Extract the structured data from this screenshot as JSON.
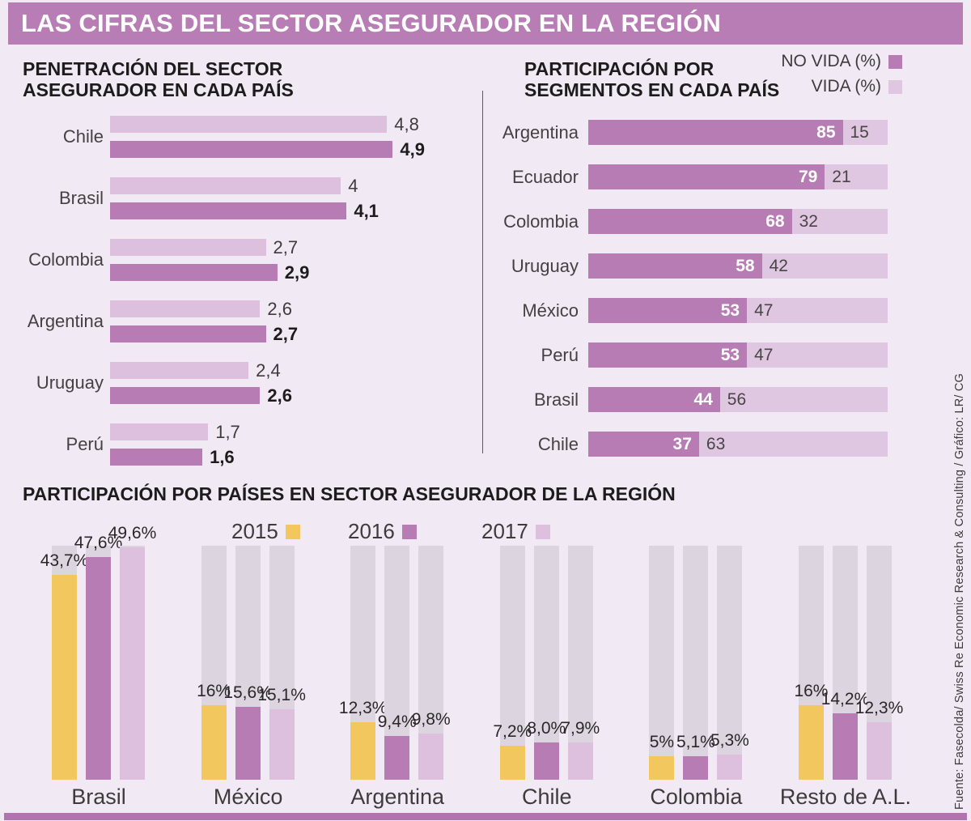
{
  "page": {
    "title": "LAS CIFRAS DEL SECTOR ASEGURADOR EN LA REGIÓN",
    "source_note": "Fuente: Fasecolda/ Swiss Re Economic Research & Consulting / Gráfico: LR/ CG"
  },
  "colors": {
    "background": "#f1eaf4",
    "header_bar": "#b77db4",
    "bottom_bar": "#b273ae",
    "bar_dark": "#b77cb4",
    "bar_light": "#dcc0de",
    "vida_light": "#dfc7e1",
    "track": "#dcd5e0",
    "yellow": "#f2c75e",
    "text_dark": "#231f20",
    "text_gray": "#464043",
    "white": "#ffffff"
  },
  "chart_data": [
    {
      "name": "penetracion_sector",
      "type": "bar",
      "orientation": "horizontal",
      "title": "PENETRACIÓN DEL SECTOR ASEGURADOR EN CADA PAÍS",
      "categories": [
        "Chile",
        "Brasil",
        "Colombia",
        "Argentina",
        "Uruguay",
        "Perú"
      ],
      "series": [
        {
          "name": "claro",
          "values": [
            4.8,
            4,
            2.7,
            2.6,
            2.4,
            1.7
          ],
          "labels": [
            "4,8",
            "4",
            "2,7",
            "2,6",
            "2,4",
            "1,7"
          ]
        },
        {
          "name": "oscuro",
          "values": [
            4.9,
            4.1,
            2.9,
            2.7,
            2.6,
            1.6
          ],
          "labels": [
            "4,9",
            "4,1",
            "2,9",
            "2,7",
            "2,6",
            "1,6"
          ]
        }
      ],
      "xmax": 5,
      "grid": false
    },
    {
      "name": "participacion_segmentos",
      "type": "bar",
      "subtype": "stacked",
      "orientation": "horizontal",
      "title": "PARTICIPACIÓN POR SEGMENTOS EN CADA PAÍS",
      "categories": [
        "Argentina",
        "Ecuador",
        "Colombia",
        "Uruguay",
        "México",
        "Perú",
        "Brasil",
        "Chile"
      ],
      "series": [
        {
          "name": "NO VIDA (%)",
          "values": [
            85,
            79,
            68,
            58,
            53,
            53,
            44,
            37
          ]
        },
        {
          "name": "VIDA (%)",
          "values": [
            15,
            21,
            32,
            42,
            47,
            47,
            56,
            63
          ]
        }
      ],
      "total": 100,
      "legend_position": "top-right"
    },
    {
      "name": "participacion_paises",
      "type": "bar",
      "subtype": "grouped",
      "orientation": "vertical",
      "title": "PARTICIPACIÓN POR PAÍSES EN SECTOR ASEGURADOR DE LA REGIÓN",
      "categories": [
        "Brasil",
        "México",
        "Argentina",
        "Chile",
        "Colombia",
        "Resto de A.L."
      ],
      "series": [
        {
          "name": "2015",
          "color_key": "yellow",
          "values": [
            43.7,
            16,
            12.3,
            7.2,
            5,
            16
          ],
          "labels": [
            "43,7%",
            "16%",
            "12,3%",
            "7,2%",
            "5%",
            "16%"
          ]
        },
        {
          "name": "2016",
          "color_key": "bar_dark",
          "values": [
            47.6,
            15.6,
            9.4,
            8.0,
            5.1,
            14.2
          ],
          "labels": [
            "47,6%",
            "15,6%",
            "9,4%",
            "8,0%",
            "5,1%",
            "14,2%"
          ]
        },
        {
          "name": "2017",
          "color_key": "bar_light",
          "values": [
            49.6,
            15.1,
            9.8,
            7.9,
            5.3,
            12.3
          ],
          "labels": [
            "49,6%",
            "15,1%",
            "9,8%",
            "7,9%",
            "5,3%",
            "12,3%"
          ]
        }
      ],
      "axis_max": 50,
      "legend_position": "top"
    }
  ]
}
